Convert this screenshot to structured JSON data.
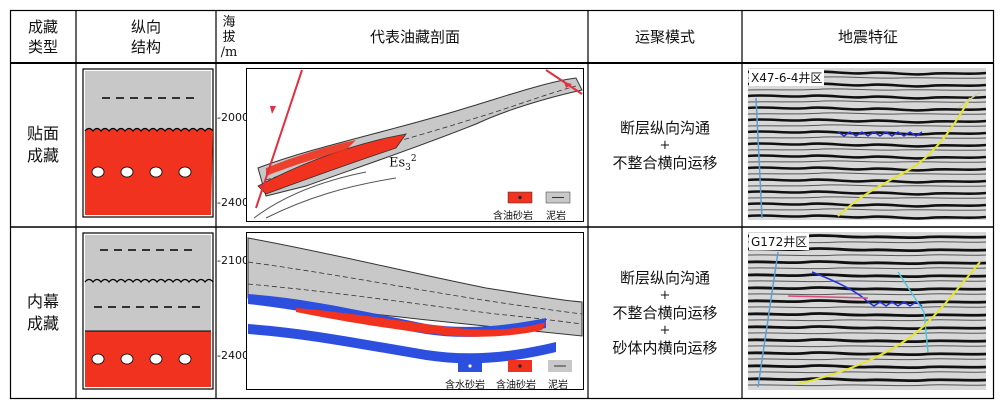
{
  "colors": {
    "oil_sand": "#f0321e",
    "mudstone": "#c8c8c8",
    "water_sand": "#2d4fe0",
    "fault": "#e03040",
    "grid": "#000000"
  },
  "header": {
    "type": "成藏\n类型",
    "structure": "纵向\n结构",
    "elev": "海\n拔\n/m",
    "section": "代表油藏剖面",
    "mode": "运聚模式",
    "seismic": "地震特征"
  },
  "rows": [
    {
      "type": "贴面\n成藏",
      "ticks": [
        "-2000",
        "-2400"
      ],
      "formation_label": "Es",
      "formation_sub": "3",
      "formation_sup": "2",
      "legend": [
        "含油砂岩",
        "泥岩"
      ],
      "mode": [
        "断层纵向沟通",
        "+",
        "不整合横向运移"
      ],
      "seismic_label": "X47-6-4井区"
    },
    {
      "type": "内幕\n成藏",
      "ticks": [
        "-2100",
        "-2400"
      ],
      "legend": [
        "含水砂岩",
        "含油砂岩",
        "泥岩"
      ],
      "mode": [
        "断层纵向沟通",
        "+",
        "不整合横向运移",
        "+",
        "砂体内横向运移"
      ],
      "seismic_label": "G172井区"
    }
  ]
}
